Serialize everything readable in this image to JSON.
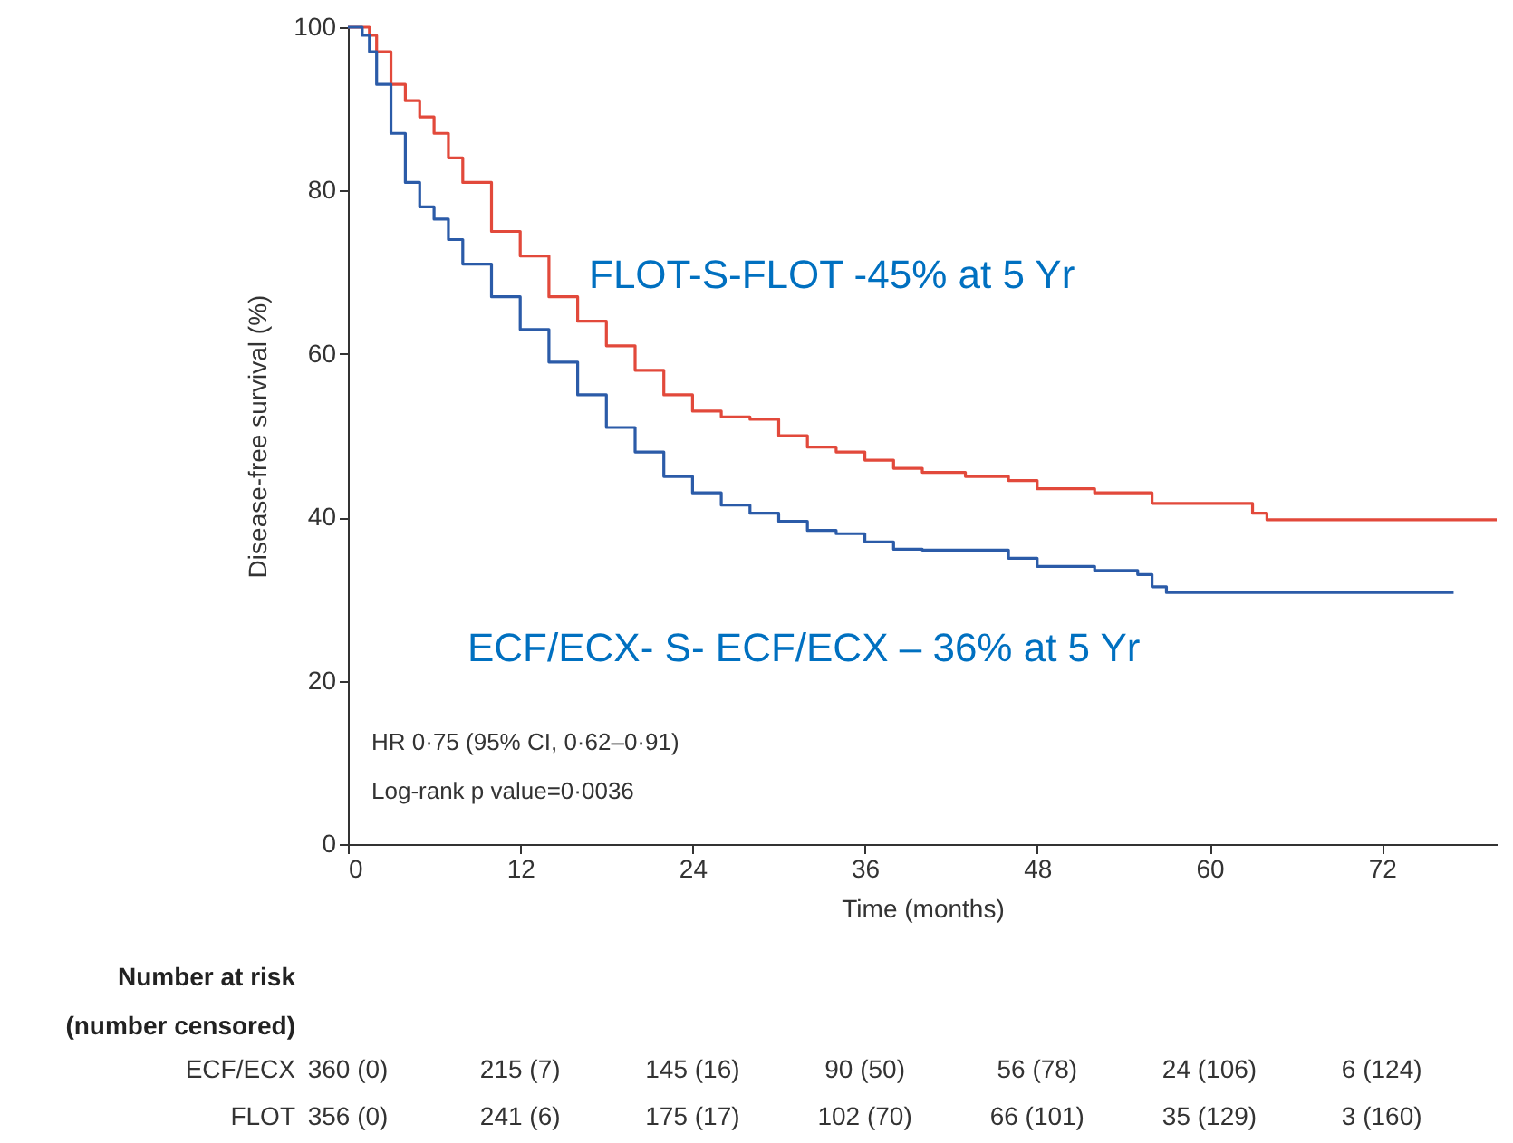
{
  "chart_data": {
    "type": "step",
    "xlabel": "Time (months)",
    "ylabel": "Disease-free survival (%)",
    "xlim": [
      0,
      80
    ],
    "xticks": [
      0,
      12,
      24,
      36,
      48,
      60,
      72
    ],
    "ylim": [
      0,
      100
    ],
    "yticks": [
      0,
      20,
      40,
      60,
      80,
      100
    ],
    "grid": false,
    "series": [
      {
        "color": "#e2493b",
        "x": [
          0,
          1.5,
          2,
          3,
          4,
          5,
          6,
          7,
          8,
          10,
          12,
          14,
          16,
          18,
          20,
          22,
          24,
          26,
          28,
          30,
          32,
          34,
          36,
          38,
          40,
          43,
          46,
          48,
          52,
          56,
          60,
          63,
          64,
          70,
          80
        ],
        "values": [
          100,
          99,
          97,
          93,
          91,
          89,
          87,
          84,
          81,
          75,
          72,
          67,
          64,
          61,
          58,
          55,
          53,
          52.3,
          52,
          50,
          48.6,
          48,
          47,
          46,
          45.5,
          45,
          44.5,
          43.5,
          43,
          41.7,
          41.7,
          40.5,
          39.7,
          39.7,
          39.7
        ]
      },
      {
        "color": "#2b5ba8",
        "x": [
          0,
          1,
          1.5,
          2,
          3,
          4,
          5,
          6,
          7,
          8,
          10,
          12,
          14,
          16,
          18,
          20,
          22,
          24,
          26,
          28,
          30,
          32,
          34,
          36,
          38,
          40,
          43,
          46,
          48,
          52,
          55,
          56,
          57,
          65,
          77
        ],
        "values": [
          100,
          99,
          97,
          93,
          87,
          81,
          78,
          76.5,
          74,
          71,
          67,
          63,
          59,
          55,
          51,
          48,
          45,
          43,
          41.5,
          40.5,
          39.5,
          38.4,
          38,
          37,
          36.1,
          36,
          36,
          35,
          34,
          33.5,
          33,
          31.5,
          30.8,
          30.8,
          30.8
        ]
      }
    ],
    "annotations": [
      "FLOT-S-FLOT -45% at 5 Yr",
      "ECF/ECX- S- ECF/ECX – 36% at 5 Yr",
      "HR 0·75 (95% CI, 0·62–0·91)",
      "Log-rank p value=0·0036",
      "Number at risk",
      "(number censored)",
      "ECF/ECX",
      "360 (0)",
      "215 (7)",
      "145 (16)",
      "90 (50)",
      "56 (78)",
      "24 (106)",
      "6 (124)",
      "FLOT",
      "356 (0)",
      "241 (6)",
      "175 (17)",
      "102 (70)",
      "66 (101)",
      "35 (129)",
      "3 (160)"
    ]
  }
}
